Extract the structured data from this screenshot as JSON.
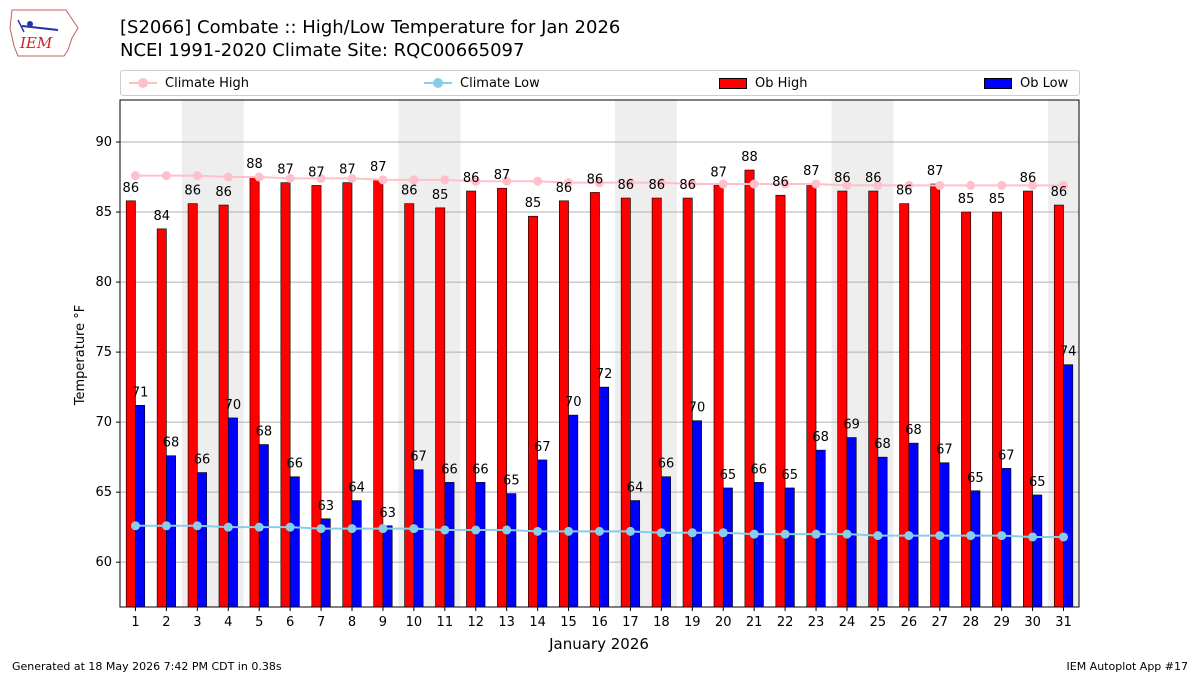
{
  "header": {
    "title_line1": "[S2066] Combate :: High/Low Temperature for Jan 2026",
    "title_line2": "NCEI 1991-2020 Climate Site: RQC00665097",
    "logo_text": "IEM"
  },
  "legend": {
    "items": [
      {
        "label": "Climate High",
        "color": "#ffc0cb",
        "kind": "line"
      },
      {
        "label": "Climate Low",
        "color": "#87ceeb",
        "kind": "line"
      },
      {
        "label": "Ob High",
        "color": "#ff0000",
        "kind": "bar"
      },
      {
        "label": "Ob Low",
        "color": "#0000ff",
        "kind": "bar"
      }
    ]
  },
  "footer": {
    "left": "Generated at 18 May 2026 7:42 PM CDT in 0.38s",
    "right": "IEM Autoplot App #17"
  },
  "chart_data": {
    "type": "bar",
    "xlabel": "January 2026",
    "ylabel": "Temperature °F",
    "ylim": [
      56.8,
      93
    ],
    "yticks": [
      60,
      65,
      70,
      75,
      80,
      85,
      90
    ],
    "grid": true,
    "legend_position": "top",
    "weekend_shading_days": [
      3,
      4,
      10,
      11,
      17,
      18,
      24,
      25,
      31
    ],
    "categories": [
      "1",
      "2",
      "3",
      "4",
      "5",
      "6",
      "7",
      "8",
      "9",
      "10",
      "11",
      "12",
      "13",
      "14",
      "15",
      "16",
      "17",
      "18",
      "19",
      "20",
      "21",
      "22",
      "23",
      "24",
      "25",
      "26",
      "27",
      "28",
      "29",
      "30",
      "31"
    ],
    "series": [
      {
        "name": "Ob High",
        "type": "bar",
        "color": "#ff0000",
        "values": [
          85.8,
          83.8,
          85.6,
          85.5,
          87.5,
          87.1,
          86.9,
          87.1,
          87.3,
          85.6,
          85.3,
          86.5,
          86.7,
          84.7,
          85.8,
          86.4,
          86.0,
          86.0,
          86.0,
          86.9,
          88.0,
          86.2,
          87.0,
          86.5,
          86.5,
          85.6,
          87.0,
          85.0,
          85.0,
          86.5,
          85.5
        ],
        "labels": [
          "86",
          "84",
          "86",
          "86",
          "88",
          "87",
          "87",
          "87",
          "87",
          "86",
          "85",
          "86",
          "87",
          "85",
          "86",
          "86",
          "86",
          "86",
          "86",
          "87",
          "88",
          "86",
          "87",
          "86",
          "86",
          "86",
          "87",
          "85",
          "85",
          "86",
          "86"
        ]
      },
      {
        "name": "Ob Low",
        "type": "bar",
        "color": "#0000ff",
        "values": [
          71.2,
          67.6,
          66.4,
          70.3,
          68.4,
          66.1,
          63.1,
          64.4,
          62.6,
          66.6,
          65.7,
          65.7,
          64.9,
          67.3,
          70.5,
          72.5,
          64.4,
          66.1,
          70.1,
          65.3,
          65.7,
          65.3,
          68.0,
          68.9,
          67.5,
          68.5,
          67.1,
          65.1,
          66.7,
          64.8,
          74.1
        ],
        "labels": [
          "71",
          "68",
          "66",
          "70",
          "68",
          "66",
          "63",
          "64",
          "63",
          "67",
          "66",
          "66",
          "65",
          "67",
          "70",
          "72",
          "64",
          "66",
          "70",
          "65",
          "66",
          "65",
          "68",
          "69",
          "68",
          "68",
          "67",
          "65",
          "67",
          "65",
          "74"
        ]
      },
      {
        "name": "Climate High",
        "type": "line",
        "color": "#ffc0cb",
        "values": [
          87.6,
          87.6,
          87.6,
          87.5,
          87.5,
          87.4,
          87.4,
          87.4,
          87.3,
          87.3,
          87.3,
          87.2,
          87.2,
          87.2,
          87.1,
          87.1,
          87.1,
          87.1,
          87.0,
          87.0,
          87.0,
          87.0,
          87.0,
          86.9,
          86.9,
          86.9,
          86.9,
          86.9,
          86.9,
          86.9,
          86.9
        ]
      },
      {
        "name": "Climate Low",
        "type": "line",
        "color": "#87ceeb",
        "values": [
          62.6,
          62.6,
          62.6,
          62.5,
          62.5,
          62.5,
          62.4,
          62.4,
          62.4,
          62.4,
          62.3,
          62.3,
          62.3,
          62.2,
          62.2,
          62.2,
          62.2,
          62.1,
          62.1,
          62.1,
          62.0,
          62.0,
          62.0,
          62.0,
          61.9,
          61.9,
          61.9,
          61.9,
          61.9,
          61.8,
          61.8
        ]
      }
    ]
  }
}
